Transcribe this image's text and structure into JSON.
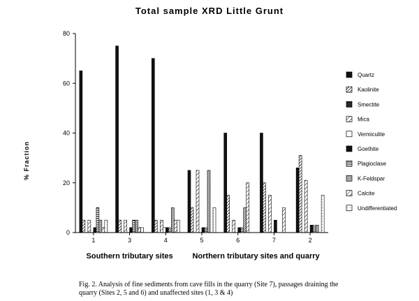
{
  "chart_data": {
    "type": "bar",
    "title": "Total sample XRD Little Grunt",
    "ylabel": "% Fraction",
    "xlabel": "",
    "ylim": [
      0,
      80
    ],
    "yticks": [
      0,
      20,
      40,
      60,
      80
    ],
    "categories": [
      "1",
      "3",
      "4",
      "5",
      "6",
      "7",
      "2"
    ],
    "groups": [
      {
        "label": "Southern tributary sites",
        "categories": [
          "1",
          "3",
          "4"
        ]
      },
      {
        "label": "Northern tributary sites and quarry",
        "categories": [
          "5",
          "6",
          "7",
          "2"
        ]
      }
    ],
    "series": [
      {
        "name": "Quartz",
        "pattern": "solid",
        "values": [
          65,
          75,
          70,
          25,
          40,
          40,
          26
        ]
      },
      {
        "name": "Kaolinite",
        "pattern": "hatch-fine",
        "values": [
          5,
          5,
          5,
          10,
          15,
          20,
          31
        ]
      },
      {
        "name": "Smectite",
        "pattern": "dark-hatch",
        "values": [
          0,
          0,
          0,
          0,
          0,
          0,
          0
        ]
      },
      {
        "name": "Mica",
        "pattern": "hatch-wide",
        "values": [
          5,
          5,
          5,
          25,
          5,
          15,
          21
        ]
      },
      {
        "name": "Vermiculite",
        "pattern": "empty",
        "values": [
          0,
          0,
          2,
          0,
          0,
          0,
          0
        ]
      },
      {
        "name": "Goethite",
        "pattern": "solid",
        "values": [
          2,
          2,
          2,
          2,
          2,
          5,
          3
        ]
      },
      {
        "name": "Plagioclase",
        "pattern": "horizontal",
        "values": [
          10,
          5,
          2,
          2,
          2,
          0,
          3
        ]
      },
      {
        "name": "K-Feldspar",
        "pattern": "stipple",
        "values": [
          5,
          5,
          10,
          25,
          10,
          0,
          3
        ]
      },
      {
        "name": "Calcite",
        "pattern": "hatch-wide",
        "values": [
          2,
          2,
          5,
          0,
          20,
          10,
          0
        ]
      },
      {
        "name": "Undifferentiated",
        "pattern": "dots",
        "values": [
          5,
          2,
          5,
          10,
          0,
          0,
          15
        ]
      }
    ],
    "legend_position": "right",
    "grid": false
  },
  "caption": {
    "line1": "Fig. 2.  Analysis of fine sediments from cave fills in the quarry (Site 7), passages draining the",
    "line2": "quarry (Sites 2, 5 and 6) and unaffected sites (1, 3 & 4)"
  }
}
